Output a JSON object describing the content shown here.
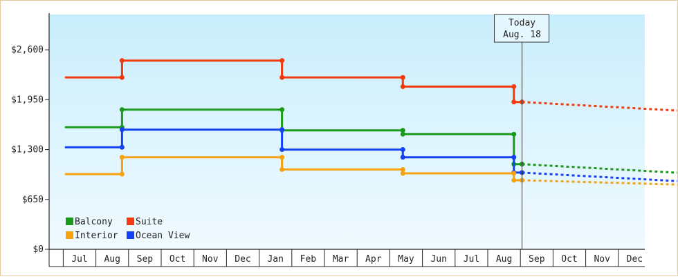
{
  "colors": {
    "Balcony": "#1a9a1a",
    "Suite": "#f23a0e",
    "Interior": "#f7a20f",
    "Ocean View": "#1541f5",
    "plot_top": "#c9eefb",
    "plot_bottom": "#f0faff",
    "frame_border": "#e8c99a"
  },
  "today_label": {
    "line1": "Today",
    "line2": "Aug. 18"
  },
  "chart_data": {
    "type": "line",
    "step": true,
    "x_axis": {
      "type": "time",
      "ticks": [
        "Jul",
        "Aug",
        "Sep",
        "Oct",
        "Nov",
        "Dec",
        "Jan",
        "Feb",
        "Mar",
        "Apr",
        "May",
        "Jun",
        "Jul",
        "Aug",
        "Sep",
        "Oct",
        "Nov",
        "Dec"
      ]
    },
    "y_axis": {
      "ticks": [
        "$0",
        "$650",
        "$1,300",
        "$1,950",
        "$2,600"
      ],
      "tick_values": [
        0,
        650,
        1300,
        1950,
        2600
      ],
      "ylim": [
        0,
        3060
      ]
    },
    "grid": false,
    "legend_position": "bottom-left",
    "legend": [
      "Balcony",
      "Suite",
      "Interior",
      "Ocean View"
    ],
    "today_month": 13.55,
    "series": [
      {
        "name": "Suite",
        "points": [
          [
            -0.45,
            2240
          ],
          [
            1.3,
            2240
          ],
          [
            1.3,
            2460
          ],
          [
            6.2,
            2460
          ],
          [
            6.2,
            2240
          ],
          [
            9.9,
            2240
          ],
          [
            9.9,
            2120
          ],
          [
            13.3,
            2120
          ],
          [
            13.3,
            1920
          ],
          [
            13.55,
            1920
          ]
        ],
        "projection": [
          [
            13.55,
            1920
          ],
          [
            18.65,
            1800
          ]
        ]
      },
      {
        "name": "Balcony",
        "points": [
          [
            -0.45,
            1590
          ],
          [
            1.3,
            1590
          ],
          [
            1.3,
            1820
          ],
          [
            6.2,
            1820
          ],
          [
            6.2,
            1550
          ],
          [
            9.9,
            1550
          ],
          [
            9.9,
            1500
          ],
          [
            13.3,
            1500
          ],
          [
            13.3,
            1110
          ],
          [
            13.55,
            1110
          ]
        ],
        "projection": [
          [
            13.55,
            1110
          ],
          [
            18.65,
            990
          ]
        ]
      },
      {
        "name": "Ocean View",
        "points": [
          [
            -0.45,
            1330
          ],
          [
            1.3,
            1330
          ],
          [
            1.3,
            1560
          ],
          [
            6.2,
            1560
          ],
          [
            6.2,
            1300
          ],
          [
            9.9,
            1300
          ],
          [
            9.9,
            1200
          ],
          [
            13.3,
            1200
          ],
          [
            13.3,
            1000
          ],
          [
            13.55,
            1000
          ]
        ],
        "projection": [
          [
            13.55,
            1000
          ],
          [
            18.65,
            880
          ]
        ]
      },
      {
        "name": "Interior",
        "points": [
          [
            -0.45,
            980
          ],
          [
            1.3,
            980
          ],
          [
            1.3,
            1200
          ],
          [
            6.2,
            1200
          ],
          [
            6.2,
            1040
          ],
          [
            9.9,
            1040
          ],
          [
            9.9,
            990
          ],
          [
            13.3,
            990
          ],
          [
            13.3,
            900
          ],
          [
            13.55,
            900
          ]
        ],
        "projection": [
          [
            13.55,
            900
          ],
          [
            18.65,
            840
          ]
        ]
      }
    ]
  }
}
